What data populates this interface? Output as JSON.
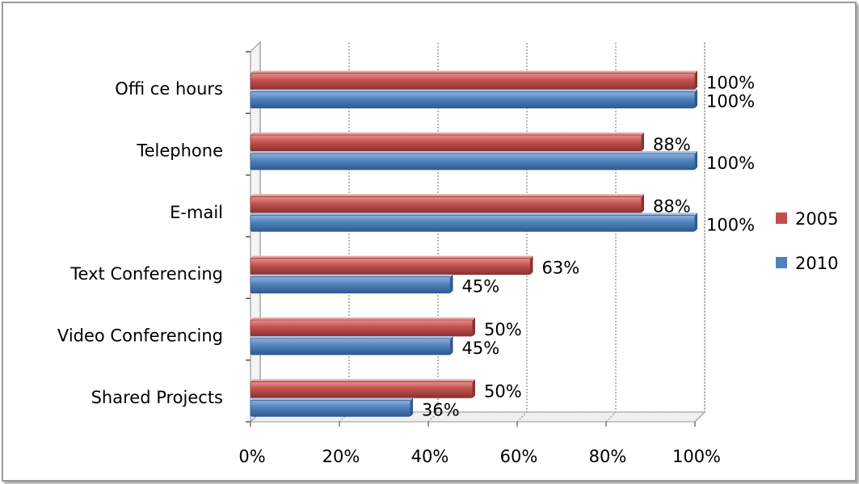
{
  "chart_data": {
    "type": "bar",
    "orientation": "horizontal",
    "categories": [
      "Offi   ce hours",
      "Telephone",
      "E-mail",
      "Text Conferencing",
      "Video Conferencing",
      "Shared Projects"
    ],
    "series": [
      {
        "name": "2005",
        "color": "#c0504d",
        "values": [
          100,
          88,
          88,
          63,
          50,
          50
        ],
        "labels": [
          "100%",
          "88%",
          "88%",
          "63%",
          "50%",
          "50%"
        ]
      },
      {
        "name": "2010",
        "color": "#4f81bd",
        "values": [
          100,
          100,
          100,
          45,
          45,
          36
        ],
        "labels": [
          "100%",
          "100%",
          "100%",
          "45%",
          "45%",
          "36%"
        ]
      }
    ],
    "x_ticks": [
      "0%",
      "20%",
      "40%",
      "60%",
      "80%",
      "100%"
    ],
    "xlim": [
      0,
      100
    ],
    "grid": true,
    "legend_position": "right",
    "title": "",
    "xlabel": "",
    "ylabel": ""
  }
}
